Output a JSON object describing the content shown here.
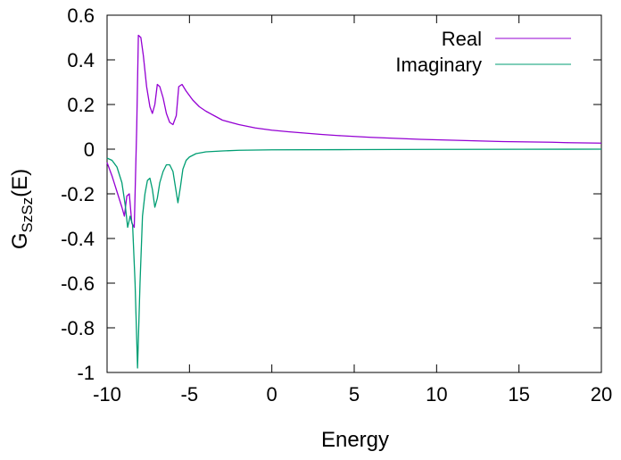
{
  "chart_data": {
    "type": "line",
    "xlabel": "Energy",
    "ylabel": {
      "base": "G",
      "sub": "SzSz",
      "suffix": "(E)"
    },
    "xlim": [
      -10,
      20
    ],
    "ylim": [
      -1,
      0.6
    ],
    "xticks": [
      -10,
      -5,
      0,
      5,
      10,
      15,
      20
    ],
    "yticks": [
      -1,
      -0.8,
      -0.6,
      -0.4,
      -0.2,
      0,
      0.2,
      0.4,
      0.6
    ],
    "xtick_labels": [
      "-10",
      "-5",
      "0",
      "5",
      "10",
      "15",
      "20"
    ],
    "ytick_labels": [
      "-1",
      "-0.8",
      "-0.6",
      "-0.4",
      "-0.2",
      "0",
      "0.2",
      "0.4",
      "0.6"
    ],
    "grid": false,
    "legend_position": "top-right",
    "series": [
      {
        "name": "Real",
        "color": "#9400d3",
        "points": [
          [
            -10,
            -0.06
          ],
          [
            -9.7,
            -0.12
          ],
          [
            -9.4,
            -0.19
          ],
          [
            -9.1,
            -0.26
          ],
          [
            -8.95,
            -0.3
          ],
          [
            -8.8,
            -0.21
          ],
          [
            -8.65,
            -0.2
          ],
          [
            -8.5,
            -0.33
          ],
          [
            -8.35,
            -0.35
          ],
          [
            -8.2,
            0.1
          ],
          [
            -8.1,
            0.51
          ],
          [
            -7.95,
            0.5
          ],
          [
            -7.8,
            0.42
          ],
          [
            -7.6,
            0.28
          ],
          [
            -7.4,
            0.19
          ],
          [
            -7.25,
            0.16
          ],
          [
            -7.1,
            0.2
          ],
          [
            -6.95,
            0.29
          ],
          [
            -6.8,
            0.28
          ],
          [
            -6.6,
            0.23
          ],
          [
            -6.4,
            0.16
          ],
          [
            -6.2,
            0.12
          ],
          [
            -6.0,
            0.11
          ],
          [
            -5.8,
            0.15
          ],
          [
            -5.65,
            0.28
          ],
          [
            -5.45,
            0.29
          ],
          [
            -5.2,
            0.26
          ],
          [
            -4.8,
            0.22
          ],
          [
            -4.4,
            0.19
          ],
          [
            -4.0,
            0.17
          ],
          [
            -3.5,
            0.15
          ],
          [
            -3.0,
            0.13
          ],
          [
            -2.0,
            0.11
          ],
          [
            -1.0,
            0.095
          ],
          [
            0,
            0.085
          ],
          [
            1,
            0.078
          ],
          [
            2,
            0.072
          ],
          [
            3,
            0.066
          ],
          [
            4,
            0.061
          ],
          [
            5,
            0.057
          ],
          [
            6,
            0.053
          ],
          [
            7,
            0.05
          ],
          [
            8,
            0.047
          ],
          [
            9,
            0.044
          ],
          [
            10,
            0.042
          ],
          [
            11,
            0.04
          ],
          [
            12,
            0.038
          ],
          [
            13,
            0.036
          ],
          [
            14,
            0.034
          ],
          [
            15,
            0.033
          ],
          [
            16,
            0.032
          ],
          [
            17,
            0.031
          ],
          [
            18,
            0.029
          ],
          [
            19,
            0.028
          ],
          [
            20,
            0.027
          ]
        ]
      },
      {
        "name": "Imaginary",
        "color": "#009e73",
        "points": [
          [
            -10,
            -0.04
          ],
          [
            -9.7,
            -0.05
          ],
          [
            -9.4,
            -0.08
          ],
          [
            -9.1,
            -0.15
          ],
          [
            -8.9,
            -0.25
          ],
          [
            -8.75,
            -0.35
          ],
          [
            -8.6,
            -0.3
          ],
          [
            -8.45,
            -0.34
          ],
          [
            -8.3,
            -0.6
          ],
          [
            -8.15,
            -0.98
          ],
          [
            -8.0,
            -0.6
          ],
          [
            -7.85,
            -0.3
          ],
          [
            -7.7,
            -0.2
          ],
          [
            -7.55,
            -0.14
          ],
          [
            -7.4,
            -0.13
          ],
          [
            -7.25,
            -0.18
          ],
          [
            -7.1,
            -0.26
          ],
          [
            -6.95,
            -0.22
          ],
          [
            -6.8,
            -0.15
          ],
          [
            -6.6,
            -0.1
          ],
          [
            -6.4,
            -0.07
          ],
          [
            -6.2,
            -0.07
          ],
          [
            -6.0,
            -0.1
          ],
          [
            -5.85,
            -0.17
          ],
          [
            -5.7,
            -0.24
          ],
          [
            -5.55,
            -0.17
          ],
          [
            -5.4,
            -0.09
          ],
          [
            -5.2,
            -0.05
          ],
          [
            -5.0,
            -0.035
          ],
          [
            -4.6,
            -0.02
          ],
          [
            -4.0,
            -0.012
          ],
          [
            -3.0,
            -0.008
          ],
          [
            -2.0,
            -0.005
          ],
          [
            0,
            -0.003
          ],
          [
            5,
            -0.002
          ],
          [
            10,
            -0.001
          ],
          [
            15,
            -0.0005
          ],
          [
            20,
            0
          ]
        ]
      }
    ]
  }
}
